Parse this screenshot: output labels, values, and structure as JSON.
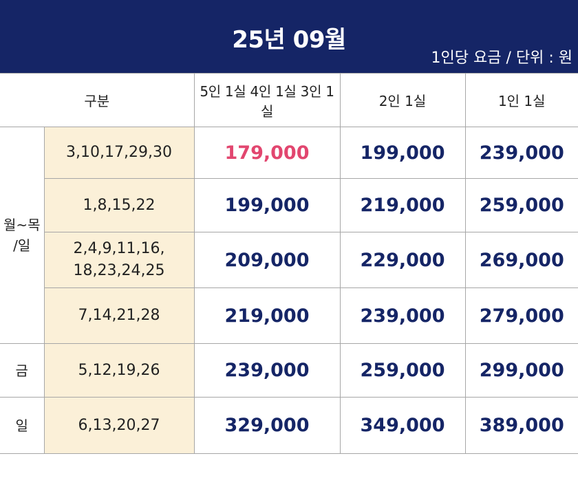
{
  "header": {
    "title": "25년 09월",
    "unit_note": "1인당 요금 / 단위 : 원"
  },
  "table": {
    "columns": {
      "category": "구분",
      "col_group": "5인 1실 4인 1실 3인 1실",
      "col_double": "2인 1실",
      "col_single": "1인 1실"
    },
    "groups": {
      "weekday": "월~목\n/일",
      "friday": "금",
      "sunday": "일"
    },
    "rows": [
      {
        "dates": "3,10,17,29,30",
        "p1": "179,000",
        "p2": "199,000",
        "p3": "239,000"
      },
      {
        "dates": "1,8,15,22",
        "p1": "199,000",
        "p2": "219,000",
        "p3": "259,000"
      },
      {
        "dates": "2,4,9,11,16,\n18,23,24,25",
        "p1": "209,000",
        "p2": "229,000",
        "p3": "269,000"
      },
      {
        "dates": "7,14,21,28",
        "p1": "219,000",
        "p2": "239,000",
        "p3": "279,000"
      },
      {
        "dates": "5,12,19,26",
        "p1": "239,000",
        "p2": "259,000",
        "p3": "299,000"
      },
      {
        "dates": "6,13,20,27",
        "p1": "329,000",
        "p2": "349,000",
        "p3": "389,000"
      }
    ]
  },
  "colors": {
    "header_bg": "#152566",
    "price_text": "#152566",
    "highlight_price": "#e2466f",
    "date_bg": "#fbf0d8"
  }
}
